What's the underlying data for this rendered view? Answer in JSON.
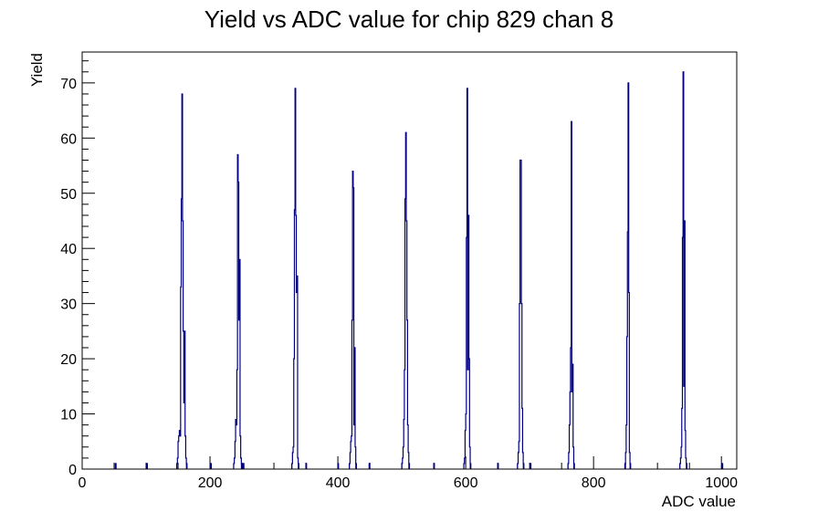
{
  "chart_data": {
    "type": "bar",
    "title": "Yield vs ADC value for chip 829 chan 8",
    "xlabel": "ADC value",
    "ylabel": "Yield",
    "xlim": [
      0,
      1024
    ],
    "ylim": [
      0,
      75.6
    ],
    "x_ticks": [
      0,
      200,
      400,
      600,
      800,
      1000
    ],
    "y_ticks": [
      0,
      10,
      20,
      30,
      40,
      50,
      60,
      70
    ],
    "grid": false,
    "legend": "none",
    "line_color": "#000080",
    "series": [
      {
        "bins": [
          [
            52,
            1
          ],
          [
            101,
            1
          ],
          [
            148,
            1
          ],
          [
            149,
            2
          ],
          [
            150,
            5
          ],
          [
            151,
            6
          ],
          [
            152,
            7
          ],
          [
            153,
            6
          ],
          [
            154,
            33
          ],
          [
            155,
            49
          ],
          [
            156,
            68
          ],
          [
            157,
            45
          ],
          [
            158,
            25
          ],
          [
            159,
            12
          ],
          [
            160,
            25
          ],
          [
            161,
            6
          ],
          [
            162,
            2
          ],
          [
            163,
            1
          ],
          [
            201,
            1
          ],
          [
            237,
            1
          ],
          [
            238,
            2
          ],
          [
            239,
            5
          ],
          [
            240,
            9
          ],
          [
            241,
            8
          ],
          [
            242,
            18
          ],
          [
            243,
            57
          ],
          [
            244,
            52
          ],
          [
            245,
            27
          ],
          [
            246,
            38
          ],
          [
            247,
            6
          ],
          [
            248,
            2
          ],
          [
            249,
            1
          ],
          [
            251,
            1
          ],
          [
            252,
            1
          ],
          [
            328,
            1
          ],
          [
            329,
            3
          ],
          [
            330,
            4
          ],
          [
            331,
            20
          ],
          [
            332,
            47
          ],
          [
            333,
            69
          ],
          [
            334,
            46
          ],
          [
            335,
            32
          ],
          [
            336,
            35
          ],
          [
            337,
            2
          ],
          [
            338,
            1
          ],
          [
            350,
            1
          ],
          [
            400,
            1
          ],
          [
            418,
            1
          ],
          [
            419,
            3
          ],
          [
            420,
            5
          ],
          [
            421,
            6
          ],
          [
            422,
            27
          ],
          [
            423,
            54
          ],
          [
            424,
            51
          ],
          [
            425,
            8
          ],
          [
            426,
            22
          ],
          [
            427,
            4
          ],
          [
            428,
            1
          ],
          [
            449,
            1
          ],
          [
            500,
            1
          ],
          [
            501,
            2
          ],
          [
            502,
            4
          ],
          [
            503,
            9
          ],
          [
            504,
            18
          ],
          [
            505,
            49
          ],
          [
            506,
            61
          ],
          [
            507,
            45
          ],
          [
            508,
            27
          ],
          [
            509,
            8
          ],
          [
            510,
            3
          ],
          [
            511,
            1
          ],
          [
            550,
            1
          ],
          [
            597,
            1
          ],
          [
            598,
            2
          ],
          [
            599,
            7
          ],
          [
            600,
            10
          ],
          [
            601,
            42
          ],
          [
            602,
            69
          ],
          [
            603,
            18
          ],
          [
            604,
            46
          ],
          [
            605,
            20
          ],
          [
            606,
            4
          ],
          [
            607,
            1
          ],
          [
            650,
            1
          ],
          [
            681,
            1
          ],
          [
            682,
            3
          ],
          [
            683,
            5
          ],
          [
            684,
            30
          ],
          [
            685,
            56
          ],
          [
            686,
            56
          ],
          [
            687,
            30
          ],
          [
            688,
            11
          ],
          [
            689,
            3
          ],
          [
            690,
            1
          ],
          [
            701,
            1
          ],
          [
            760,
            1
          ],
          [
            761,
            3
          ],
          [
            762,
            8
          ],
          [
            763,
            14
          ],
          [
            764,
            22
          ],
          [
            765,
            63
          ],
          [
            766,
            14
          ],
          [
            767,
            19
          ],
          [
            768,
            4
          ],
          [
            769,
            1
          ],
          [
            849,
            1
          ],
          [
            850,
            3
          ],
          [
            851,
            8
          ],
          [
            852,
            24
          ],
          [
            853,
            43
          ],
          [
            854,
            70
          ],
          [
            855,
            32
          ],
          [
            856,
            3
          ],
          [
            857,
            1
          ],
          [
            935,
            1
          ],
          [
            936,
            2
          ],
          [
            937,
            4
          ],
          [
            938,
            11
          ],
          [
            939,
            42
          ],
          [
            940,
            72
          ],
          [
            941,
            15
          ],
          [
            942,
            45
          ],
          [
            943,
            7
          ],
          [
            944,
            2
          ],
          [
            945,
            1
          ],
          [
            1001,
            1
          ]
        ]
      }
    ]
  }
}
